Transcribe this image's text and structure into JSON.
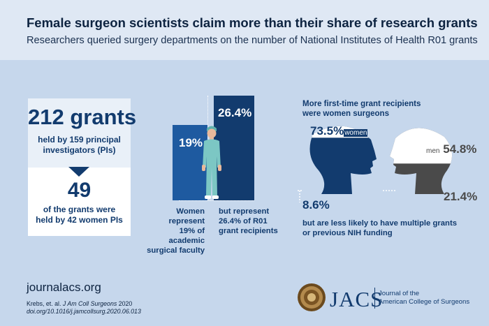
{
  "header": {
    "title": "Female surgeon scientists claim more than their share of research grants",
    "subtitle": "Researchers queried surgery departments on the number of National Institutes of Health R01 grants"
  },
  "grants_card": {
    "total_number": "212",
    "total_unit": "grants",
    "total_desc_line1": "held by 159 principal",
    "total_desc_line2": "investigators (PIs)",
    "women_number": "49",
    "women_desc_line1": "of the grants were",
    "women_desc_line2": "held by 42 women PIs"
  },
  "comparison": {
    "faculty_pct": 19,
    "faculty_label": "19%",
    "recipients_pct": 26.4,
    "recipients_label": "26.4%",
    "faculty_caption": [
      "Women represent",
      "19% of academic",
      "surgical faculty"
    ],
    "recipients_caption": [
      "but  represent",
      "26.4% of R01",
      "grant recipients"
    ]
  },
  "heads": {
    "heading_line1": "More first-time grant recipients",
    "heading_line2": "were women surgeons",
    "women_first_time_pct": 73.5,
    "women_first_time_label": "73.5%",
    "women_word": "women",
    "men_first_time_pct": 54.8,
    "men_first_time_label": "54.8%",
    "men_word": "men",
    "women_multiple_pct": 8.6,
    "women_multiple_label": "8.6%",
    "men_multiple_pct": 21.4,
    "men_multiple_label": "21.4%",
    "footnote_line1": "but are less likely to have multiple grants",
    "footnote_line2": "or previous NIH funding"
  },
  "footer": {
    "website": "journalacs.org",
    "citation_prefix": "Krebs, et. al. ",
    "citation_journal": "J Am Coll Surgeons",
    "citation_year": " 2020",
    "doi": "doi.org/10.1016/j.jamcollsurg.2020.06.013",
    "logo_text": "JACS",
    "logo_full_line1": "Journal of the",
    "logo_full_line2": "American College of Surgeons"
  },
  "colors": {
    "navy": "#123b6e",
    "mid_blue": "#1e5aa0",
    "background": "#c6d7ec",
    "header_bg": "#dfe8f4",
    "scrubs": "#7cc7c4",
    "men_head": "#4a4a4a"
  },
  "icons": [
    "surgeon-figure-icon",
    "woman-head-icon",
    "man-head-icon",
    "acs-seal-icon"
  ]
}
